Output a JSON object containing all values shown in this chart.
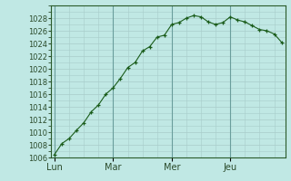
{
  "background_color": "#c0e8e4",
  "grid_color": "#a8ccca",
  "line_color": "#1a5c1a",
  "marker_color": "#1a5c1a",
  "tick_label_color": "#2a4a2a",
  "vline_color": "#6a9e9c",
  "ylim": [
    1006,
    1030
  ],
  "yticks": [
    1006,
    1008,
    1010,
    1012,
    1014,
    1016,
    1018,
    1020,
    1022,
    1024,
    1026,
    1028
  ],
  "day_labels": [
    "Lun",
    "Mar",
    "Mer",
    "Jeu"
  ],
  "day_positions": [
    0,
    8,
    16,
    24
  ],
  "x_values": [
    0,
    1,
    2,
    3,
    4,
    5,
    6,
    7,
    8,
    9,
    10,
    11,
    12,
    13,
    14,
    15,
    16,
    17,
    18,
    19,
    20,
    21,
    22,
    23,
    24,
    25,
    26,
    27,
    28,
    29,
    30,
    31
  ],
  "y_values": [
    1006.5,
    1008.2,
    1009.0,
    1010.3,
    1011.5,
    1013.2,
    1014.3,
    1016.0,
    1017.0,
    1018.5,
    1020.2,
    1021.0,
    1022.8,
    1023.5,
    1025.0,
    1025.3,
    1027.0,
    1027.3,
    1028.0,
    1028.4,
    1028.2,
    1027.4,
    1027.0,
    1027.3,
    1028.2,
    1027.7,
    1027.4,
    1026.8,
    1026.2,
    1026.0,
    1025.5,
    1024.2
  ],
  "xlim": [
    -0.5,
    31.5
  ],
  "tick_fontsize": 6.0
}
